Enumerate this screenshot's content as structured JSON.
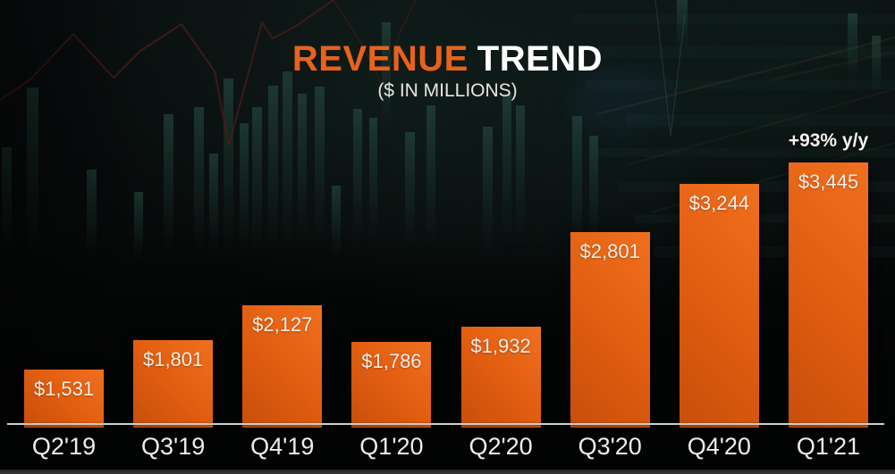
{
  "title": {
    "highlight": "REVENUE",
    "rest": "TREND",
    "subtitle": "($ IN MILLIONS)"
  },
  "colors": {
    "title_accent": "#E8621C",
    "title_rest": "#FFFFFF",
    "bar_top": "#F0701E",
    "bar_mid": "#E25E11",
    "bar_bottom": "#C84E0B",
    "value_text": "#F2EFE8",
    "axis_line": "#C9CFCE",
    "category_text": "#EFEDE8",
    "background": "#070A0A",
    "bg_candle_teal": "#24473E",
    "bg_line_maroon": "#4B1B18"
  },
  "chart_data": {
    "type": "bar",
    "title": "REVENUE TREND",
    "subtitle": "($ IN MILLIONS)",
    "categories": [
      "Q2'19",
      "Q3'19",
      "Q4'19",
      "Q1'20",
      "Q2'20",
      "Q3'20",
      "Q4'20",
      "Q1'21"
    ],
    "values": [
      1531,
      1801,
      2127,
      1786,
      1932,
      2801,
      3244,
      3445
    ],
    "labels": [
      "$1,531",
      "$1,801",
      "$2,127",
      "$1,786",
      "$1,932",
      "$2,801",
      "$3,244",
      "$3,445"
    ],
    "annotations": [
      {
        "category": "Q1'21",
        "text": "+93% y/y"
      }
    ],
    "xlabel": "",
    "ylabel": "$ in millions",
    "ylim": [
      1000,
      3445
    ],
    "grid": false,
    "legend": false,
    "value_labels_position": "inside-top",
    "baseline_not_zero": true
  }
}
